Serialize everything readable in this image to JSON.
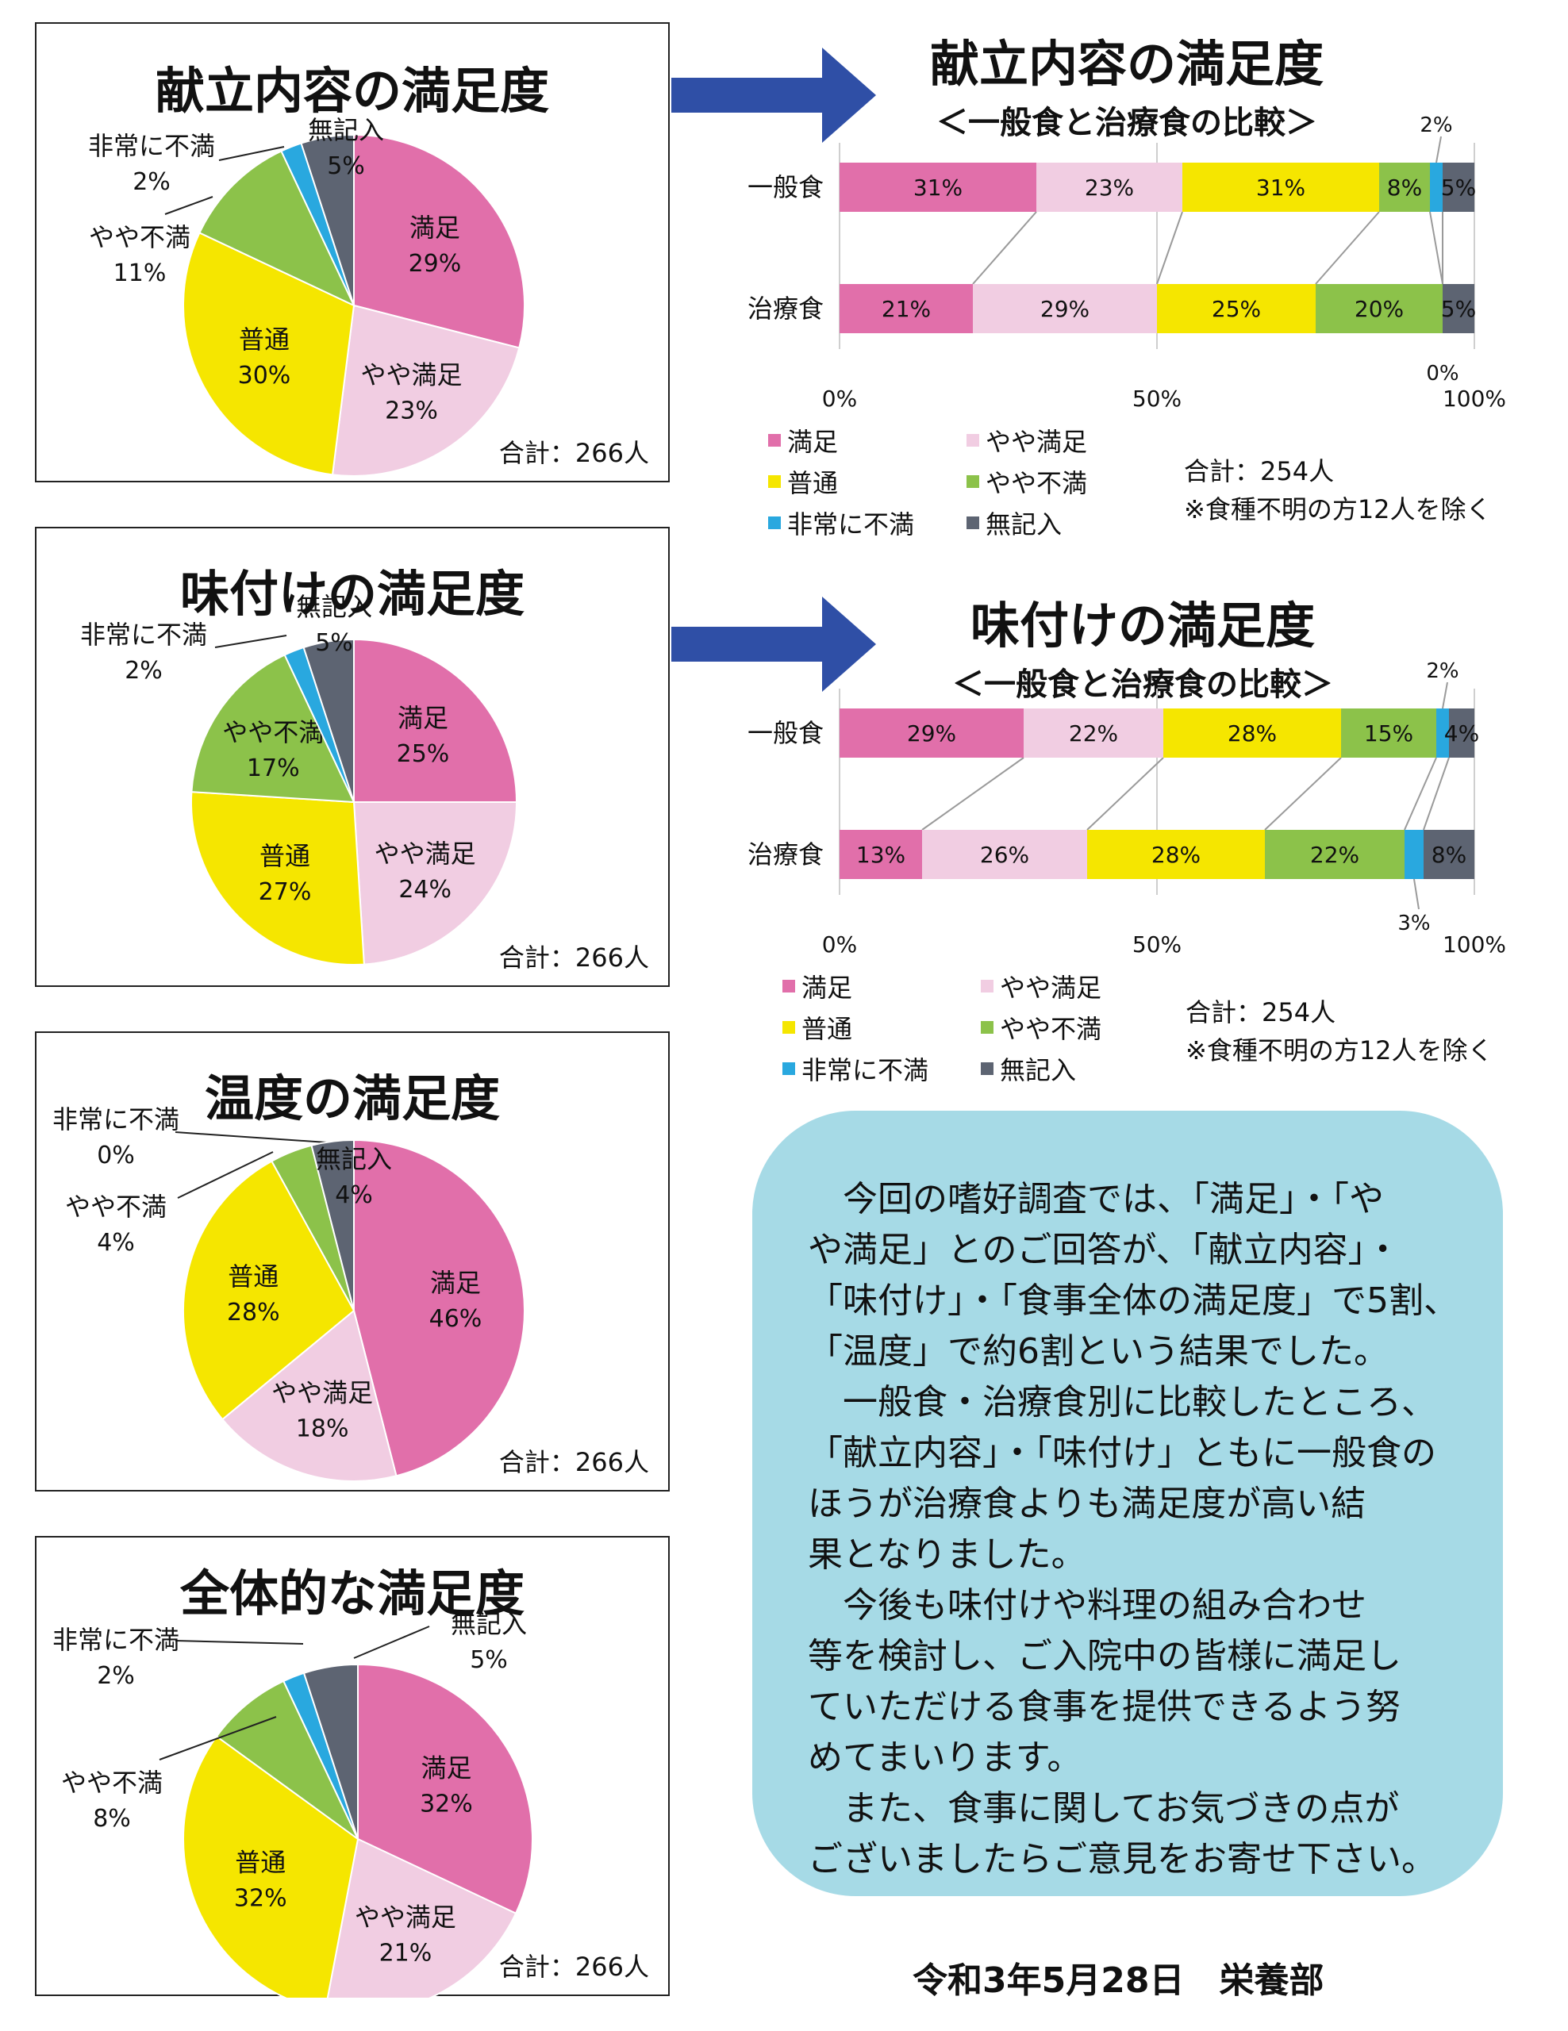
{
  "colors": {
    "manzoku": "#e16faa",
    "yaya_manzoku": "#f1cde2",
    "futsu": "#f5e600",
    "yaya_fuman": "#8cc24a",
    "hijo_fuman": "#29a8df",
    "mukinyu": "#5d6472"
  },
  "legend": [
    "満足",
    "やや満足",
    "普通",
    "やや不満",
    "非常に不満",
    "無記入"
  ],
  "pies": [
    {
      "title": "献立内容の満足度",
      "total": "合計：266人",
      "chart_data": {
        "type": "pie",
        "labels": [
          "満足",
          "やや満足",
          "普通",
          "やや不満",
          "非常に不満",
          "無記入"
        ],
        "values": [
          29,
          23,
          30,
          11,
          2,
          5
        ],
        "value_labels": [
          "29%",
          "23%",
          "30%",
          "11%",
          "2%",
          "5%"
        ]
      }
    },
    {
      "title": "味付けの満足度",
      "total": "合計：266人",
      "chart_data": {
        "type": "pie",
        "labels": [
          "満足",
          "やや満足",
          "普通",
          "やや不満",
          "非常に不満",
          "無記入"
        ],
        "values": [
          25,
          24,
          27,
          17,
          2,
          5
        ],
        "value_labels": [
          "25%",
          "24%",
          "27%",
          "17%",
          "2%",
          "5%"
        ]
      }
    },
    {
      "title": "温度の満足度",
      "total": "合計：266人",
      "chart_data": {
        "type": "pie",
        "labels": [
          "満足",
          "やや満足",
          "普通",
          "やや不満",
          "非常に不満",
          "無記入"
        ],
        "values": [
          46,
          18,
          28,
          4,
          0,
          4
        ],
        "value_labels": [
          "46%",
          "18%",
          "28%",
          "4%",
          "0%",
          "4%"
        ]
      }
    },
    {
      "title": "全体的な満足度",
      "total": "合計：266人",
      "chart_data": {
        "type": "pie",
        "labels": [
          "満足",
          "やや満足",
          "普通",
          "やや不満",
          "非常に不満",
          "無記入"
        ],
        "values": [
          32,
          21,
          32,
          8,
          2,
          5
        ],
        "value_labels": [
          "32%",
          "21%",
          "32%",
          "8%",
          "2%",
          "5%"
        ]
      }
    }
  ],
  "bars": [
    {
      "title": "献立内容の満足度",
      "subtitle": "＜一般食と治療食の比較＞",
      "note1": "合計：254人",
      "note2": "※食種不明の方12人を除く",
      "chart_data": {
        "type": "bar",
        "stacked": true,
        "orientation": "horizontal",
        "categories": [
          "一般食",
          "治療食"
        ],
        "xlim": [
          0,
          100
        ],
        "xticks": [
          "0%",
          "50%",
          "100%"
        ],
        "series": [
          {
            "name": "満足",
            "values": [
              31,
              21
            ]
          },
          {
            "name": "やや満足",
            "values": [
              23,
              29
            ]
          },
          {
            "name": "普通",
            "values": [
              31,
              25
            ]
          },
          {
            "name": "やや不満",
            "values": [
              8,
              20
            ]
          },
          {
            "name": "非常に不満",
            "values": [
              2,
              0
            ]
          },
          {
            "name": "無記入",
            "values": [
              5,
              5
            ]
          }
        ]
      }
    },
    {
      "title": "味付けの満足度",
      "subtitle": "＜一般食と治療食の比較＞",
      "note1": "合計：254人",
      "note2": "※食種不明の方12人を除く",
      "chart_data": {
        "type": "bar",
        "stacked": true,
        "orientation": "horizontal",
        "categories": [
          "一般食",
          "治療食"
        ],
        "xlim": [
          0,
          100
        ],
        "xticks": [
          "0%",
          "50%",
          "100%"
        ],
        "series": [
          {
            "name": "満足",
            "values": [
              29,
              13
            ]
          },
          {
            "name": "やや満足",
            "values": [
              22,
              26
            ]
          },
          {
            "name": "普通",
            "values": [
              28,
              28
            ]
          },
          {
            "name": "やや不満",
            "values": [
              15,
              22
            ]
          },
          {
            "name": "非常に不満",
            "values": [
              2,
              3
            ]
          },
          {
            "name": "無記入",
            "values": [
              4,
              8
            ]
          }
        ]
      }
    }
  ],
  "message": [
    "　今回の嗜好調査では、「満足」・「や",
    "や満足」とのご回答が、「献立内容」・",
    "「味付け」・「食事全体の満足度」で5割、",
    "「温度」で約6割という結果でした。",
    "　一般食・治療食別に比較したところ、",
    "「献立内容」・「味付け」ともに一般食の",
    "ほうが治療食よりも満足度が高い結",
    "果となりました。",
    "　今後も味付けや料理の組み合わせ",
    "等を検討し、ご入院中の皆様に満足し",
    "ていただける食事を提供できるよう努",
    "めてまいります。",
    "　また、食事に関してお気づきの点が",
    "ございましたらご意見をお寄せ下さい。"
  ],
  "footer": "令和3年5月28日　栄養部"
}
